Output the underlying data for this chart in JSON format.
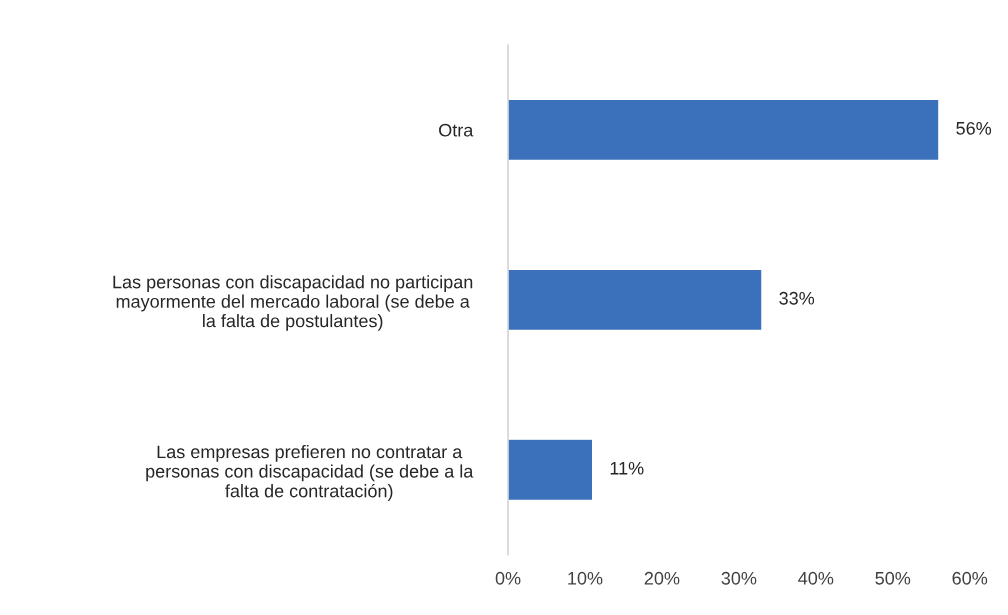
{
  "chart_data": {
    "type": "bar",
    "orientation": "horizontal",
    "categories": [
      "Otra",
      "Las personas con discapacidad no participan\nmayormente del mercado laboral (se debe a\nla falta de postulantes)",
      "Las empresas prefieren no contratar a\npersonas con discapacidad (se debe a la\nfalta de contratación)"
    ],
    "values": [
      56,
      33,
      11
    ],
    "color": "#3b70bb",
    "value_labels": [
      "56%",
      "33%",
      "11%"
    ],
    "xlim": [
      0,
      60
    ],
    "xticks": [
      {
        "value": 0,
        "label": "0%"
      },
      {
        "value": 10,
        "label": "10%"
      },
      {
        "value": 20,
        "label": "20%"
      },
      {
        "value": 30,
        "label": "30%"
      },
      {
        "value": 40,
        "label": "40%"
      },
      {
        "value": 50,
        "label": "50%"
      },
      {
        "value": 60,
        "label": "60%"
      }
    ],
    "grid": false,
    "legend": false
  }
}
